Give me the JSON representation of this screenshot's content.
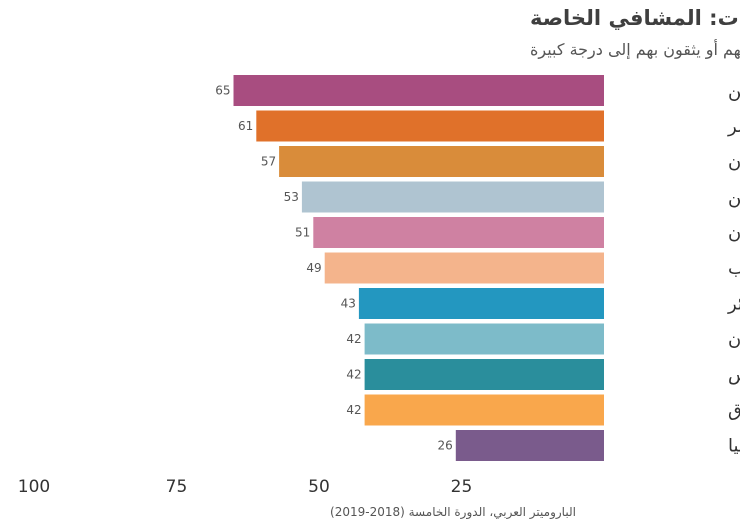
{
  "chart_data": {
    "type": "bar",
    "orientation": "horizontal",
    "title": "الثقة بالمؤسسات: المشافي الخاصة",
    "subtitle": "% من يثقون بهم أو يثقون بهم  إلى درجة كبيرة",
    "categories": [
      "اليمن",
      "مصر",
      "السودان",
      "فلسطين",
      "الأردن",
      "المغرب",
      "الجزائر",
      "لبنان",
      "تونس",
      "العراق",
      "ليبيا"
    ],
    "values": [
      65,
      61,
      57,
      53,
      51,
      49,
      43,
      42,
      42,
      42,
      26
    ],
    "colors": [
      "#a84d80",
      "#e0712a",
      "#d98c3a",
      "#afc4d1",
      "#cf81a2",
      "#f4b48c",
      "#2397c0",
      "#7dbbc9",
      "#2a8e9c",
      "#f9a74c",
      "#7a5b8c"
    ],
    "x_ticks": [
      100,
      75,
      50,
      25
    ],
    "xlim": [
      0,
      100
    ],
    "x_direction": "reversed",
    "grid": false,
    "source": "الباروميتر العربي، الدورة الخامسة (2018-2019)"
  }
}
